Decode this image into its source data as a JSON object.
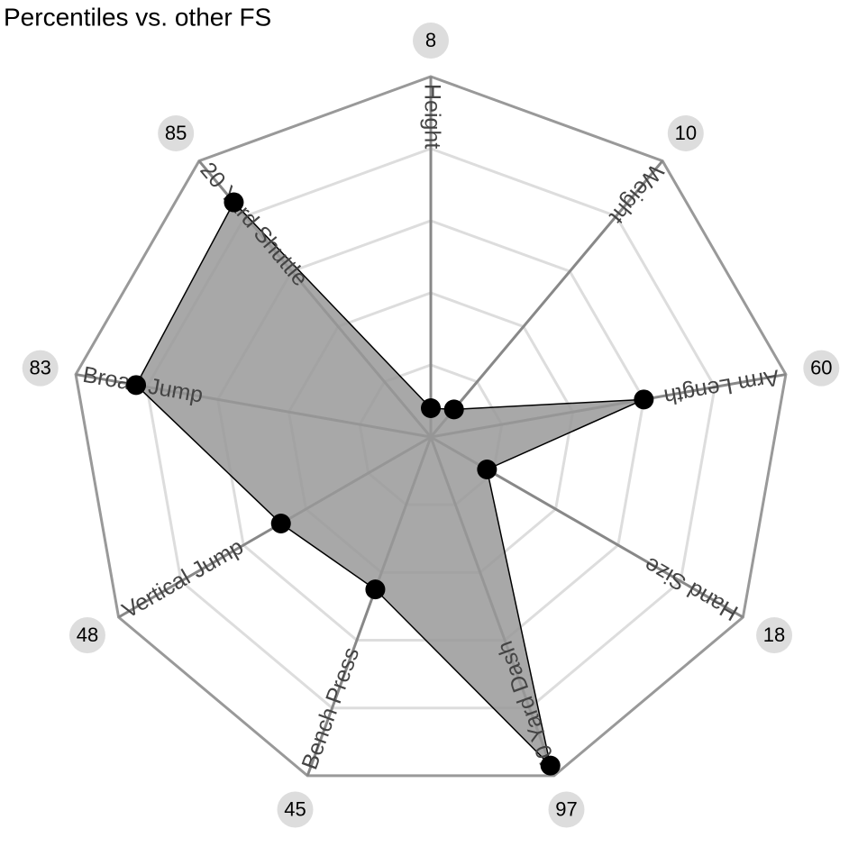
{
  "chart_data": {
    "type": "radar",
    "title": "Percentiles vs. other FS",
    "categories": [
      "Height",
      "Weight",
      "Arm Length",
      "Hand Size",
      "40 Yard Dash",
      "Bench Press",
      "Vertical Jump",
      "Broad Jump",
      "20 Yard Shuttle"
    ],
    "values": [
      8,
      10,
      60,
      18,
      97,
      45,
      48,
      83,
      85
    ],
    "color": "#999999",
    "ylim": [
      0,
      100
    ],
    "yticks": [
      20,
      40,
      60,
      80,
      100
    ],
    "grid": true
  }
}
